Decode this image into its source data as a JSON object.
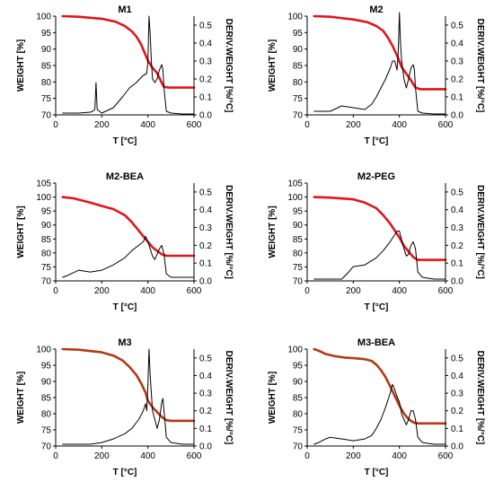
{
  "chart_data": [
    {
      "type": "line",
      "title": "M1",
      "xlabel": "T [°C]",
      "ylabel": "WEIGHT [%]",
      "y2label": "DERIV.WEIGHT [%/°C]",
      "xlim": [
        0,
        600
      ],
      "xticks": [
        0,
        200,
        400,
        600
      ],
      "ylim": [
        70,
        100
      ],
      "yticks": [
        70,
        75,
        80,
        85,
        90,
        95,
        100
      ],
      "y2lim": [
        0,
        0.55
      ],
      "y2ticks": [
        "0.0",
        "0.1",
        "0.2",
        "0.3",
        "0.4",
        "0.5"
      ],
      "series": [
        {
          "color": "#e0161b",
          "axis": "left",
          "x": [
            30,
            100,
            200,
            260,
            300,
            330,
            350,
            370,
            385,
            400,
            420,
            440,
            460,
            470,
            490,
            550,
            600
          ],
          "y": [
            100,
            99.8,
            99.2,
            98.3,
            97,
            95.4,
            93.8,
            91.5,
            89,
            86.5,
            84.3,
            82.7,
            79.7,
            78.5,
            78.3,
            78.3,
            78.3
          ]
        },
        {
          "color": "#000000",
          "axis": "right",
          "x": [
            30,
            100,
            150,
            160,
            170,
            175,
            180,
            200,
            250,
            290,
            320,
            350,
            380,
            395,
            400,
            405,
            410,
            415,
            420,
            430,
            440,
            450,
            460,
            465,
            470,
            480,
            500,
            550,
            600
          ],
          "y": [
            0.01,
            0.01,
            0.015,
            0.02,
            0.03,
            0.18,
            0.03,
            0.01,
            0.04,
            0.1,
            0.15,
            0.18,
            0.22,
            0.23,
            0.3,
            0.55,
            0.45,
            0.3,
            0.2,
            0.18,
            0.2,
            0.25,
            0.28,
            0.25,
            0.15,
            0.02,
            0.01,
            0.005,
            0.005
          ]
        }
      ]
    },
    {
      "type": "line",
      "title": "M2",
      "xlabel": "T [°C]",
      "ylabel": "WEIGHT [%]",
      "y2label": "DERIV.WEIGHT [%/°C]",
      "xlim": [
        0,
        600
      ],
      "xticks": [
        0,
        200,
        400,
        600
      ],
      "ylim": [
        70,
        100
      ],
      "yticks": [
        70,
        75,
        80,
        85,
        90,
        95,
        100
      ],
      "y2lim": [
        0,
        0.55
      ],
      "y2ticks": [
        "0.0",
        "0.1",
        "0.2",
        "0.3",
        "0.4",
        "0.5"
      ],
      "series": [
        {
          "color": "#e0161b",
          "axis": "left",
          "x": [
            30,
            100,
            200,
            260,
            300,
            330,
            350,
            370,
            390,
            410,
            430,
            450,
            470,
            490,
            550,
            600
          ],
          "y": [
            100,
            99.8,
            99,
            98.2,
            97,
            95.5,
            93.5,
            91,
            88,
            84.5,
            82.5,
            80.5,
            78.3,
            77.8,
            77.8,
            77.8
          ]
        },
        {
          "color": "#000000",
          "axis": "right",
          "x": [
            30,
            100,
            150,
            200,
            250,
            280,
            300,
            320,
            340,
            360,
            370,
            380,
            390,
            395,
            400,
            405,
            410,
            420,
            430,
            440,
            450,
            460,
            465,
            470,
            480,
            500,
            550,
            600
          ],
          "y": [
            0.02,
            0.02,
            0.05,
            0.04,
            0.03,
            0.06,
            0.1,
            0.15,
            0.2,
            0.26,
            0.3,
            0.3,
            0.25,
            0.35,
            0.57,
            0.4,
            0.3,
            0.2,
            0.15,
            0.2,
            0.26,
            0.28,
            0.25,
            0.15,
            0.02,
            0.01,
            0.005,
            0.005
          ]
        }
      ]
    },
    {
      "type": "line",
      "title": "M2-BEA",
      "xlabel": "T [°C]",
      "ylabel": "WEIGHT [%]",
      "y2label": "DERIV.WEIGHT [%/°C]",
      "xlim": [
        0,
        600
      ],
      "xticks": [
        0,
        200,
        400,
        600
      ],
      "ylim": [
        70,
        105
      ],
      "yticks": [
        70,
        75,
        80,
        85,
        90,
        95,
        100,
        105
      ],
      "y2lim": [
        0,
        0.55
      ],
      "y2ticks": [
        "0.0",
        "0.1",
        "0.2",
        "0.3",
        "0.4",
        "0.5"
      ],
      "series": [
        {
          "color": "#e0161b",
          "axis": "left",
          "x": [
            30,
            80,
            150,
            200,
            250,
            300,
            330,
            360,
            380,
            400,
            420,
            440,
            460,
            480,
            550,
            600
          ],
          "y": [
            100,
            99.5,
            98,
            96.8,
            95.7,
            93.5,
            91,
            88,
            86,
            84,
            82,
            80.8,
            79.5,
            79,
            79,
            79
          ]
        },
        {
          "color": "#000000",
          "axis": "right",
          "x": [
            30,
            50,
            100,
            150,
            200,
            250,
            300,
            330,
            360,
            380,
            390,
            400,
            410,
            420,
            430,
            440,
            450,
            460,
            470,
            480,
            500,
            550,
            600
          ],
          "y": [
            0.02,
            0.03,
            0.06,
            0.05,
            0.06,
            0.09,
            0.13,
            0.17,
            0.2,
            0.22,
            0.25,
            0.22,
            0.18,
            0.14,
            0.12,
            0.15,
            0.18,
            0.2,
            0.15,
            0.04,
            0.02,
            0.02,
            0.02
          ]
        }
      ]
    },
    {
      "type": "line",
      "title": "M2-PEG",
      "xlabel": "T [°C]",
      "ylabel": "WEIGHT [%]",
      "y2label": "DERIV.WEIGHT [%/°C]",
      "xlim": [
        0,
        600
      ],
      "xticks": [
        0,
        200,
        400,
        600
      ],
      "ylim": [
        70,
        105
      ],
      "yticks": [
        70,
        75,
        80,
        85,
        90,
        95,
        100,
        105
      ],
      "y2lim": [
        0,
        0.55
      ],
      "y2ticks": [
        "0.0",
        "0.1",
        "0.2",
        "0.3",
        "0.4",
        "0.5"
      ],
      "series": [
        {
          "color": "#e0161b",
          "axis": "left",
          "x": [
            30,
            100,
            200,
            250,
            300,
            330,
            360,
            380,
            400,
            420,
            440,
            460,
            480,
            550,
            600
          ],
          "y": [
            100,
            99.8,
            99.2,
            98,
            96,
            93.5,
            90.5,
            88,
            85.5,
            82.5,
            80.5,
            78.5,
            77.5,
            77.5,
            77.5
          ]
        },
        {
          "color": "#000000",
          "axis": "right",
          "x": [
            30,
            100,
            150,
            180,
            200,
            250,
            300,
            330,
            360,
            380,
            390,
            400,
            410,
            420,
            430,
            440,
            450,
            460,
            470,
            480,
            500,
            550,
            600
          ],
          "y": [
            0.01,
            0.01,
            0.01,
            0.05,
            0.08,
            0.09,
            0.13,
            0.17,
            0.22,
            0.26,
            0.28,
            0.28,
            0.23,
            0.18,
            0.14,
            0.15,
            0.2,
            0.22,
            0.18,
            0.05,
            0.02,
            0.01,
            0.01
          ]
        }
      ]
    },
    {
      "type": "line",
      "title": "M3",
      "xlabel": "T [°C]",
      "ylabel": "WEIGHT [%]",
      "y2label": "DERIV.WEIGHT [%/°C]",
      "xlim": [
        0,
        600
      ],
      "xticks": [
        0,
        200,
        400,
        600
      ],
      "ylim": [
        70,
        100
      ],
      "yticks": [
        70,
        75,
        80,
        85,
        90,
        95,
        100
      ],
      "y2lim": [
        0,
        0.55
      ],
      "y2ticks": [
        "0.0",
        "0.1",
        "0.2",
        "0.3",
        "0.4",
        "0.5"
      ],
      "series": [
        {
          "color": "#b23a14",
          "axis": "left",
          "x": [
            30,
            100,
            200,
            250,
            290,
            320,
            350,
            370,
            390,
            400,
            420,
            440,
            460,
            480,
            500,
            550,
            600
          ],
          "y": [
            100,
            99.8,
            99,
            98,
            96.5,
            94.5,
            92,
            89.5,
            86.5,
            84,
            82,
            80.5,
            79,
            78,
            77.8,
            77.8,
            77.8
          ]
        },
        {
          "color": "#000000",
          "axis": "right",
          "x": [
            30,
            100,
            150,
            200,
            250,
            300,
            330,
            360,
            380,
            390,
            395,
            400,
            405,
            410,
            420,
            430,
            440,
            450,
            460,
            465,
            470,
            480,
            500,
            550,
            600
          ],
          "y": [
            0.01,
            0.01,
            0.01,
            0.02,
            0.04,
            0.07,
            0.1,
            0.15,
            0.2,
            0.24,
            0.2,
            0.35,
            0.55,
            0.4,
            0.2,
            0.15,
            0.1,
            0.15,
            0.25,
            0.27,
            0.2,
            0.05,
            0.02,
            0.01,
            0.01
          ]
        }
      ]
    },
    {
      "type": "line",
      "title": "M3-BEA",
      "xlabel": "T [°C]",
      "ylabel": "WEIGHT [%]",
      "y2label": "DERIV.WEIGHT [%/°C]",
      "xlim": [
        0,
        600
      ],
      "xticks": [
        0,
        200,
        400,
        600
      ],
      "ylim": [
        70,
        100
      ],
      "yticks": [
        70,
        75,
        80,
        85,
        90,
        95,
        100
      ],
      "y2lim": [
        0,
        0.55
      ],
      "y2ticks": [
        "0.0",
        "0.1",
        "0.2",
        "0.3",
        "0.4",
        "0.5"
      ],
      "series": [
        {
          "color": "#b23a14",
          "axis": "left",
          "x": [
            30,
            50,
            80,
            120,
            160,
            200,
            250,
            280,
            300,
            320,
            340,
            360,
            380,
            400,
            420,
            440,
            460,
            480,
            550,
            600
          ],
          "y": [
            100,
            99.5,
            98.5,
            97.8,
            97.4,
            97.2,
            96.9,
            96.3,
            95.2,
            93.5,
            91.3,
            88.5,
            85.5,
            82.5,
            80,
            78.3,
            77.3,
            77,
            77,
            77
          ]
        },
        {
          "color": "#000000",
          "axis": "right",
          "x": [
            30,
            50,
            80,
            100,
            150,
            200,
            250,
            280,
            300,
            320,
            340,
            360,
            370,
            380,
            390,
            400,
            410,
            420,
            430,
            440,
            450,
            460,
            470,
            480,
            500,
            550,
            600
          ],
          "y": [
            0.01,
            0.02,
            0.04,
            0.05,
            0.04,
            0.03,
            0.04,
            0.06,
            0.1,
            0.15,
            0.22,
            0.3,
            0.35,
            0.32,
            0.28,
            0.25,
            0.18,
            0.15,
            0.12,
            0.15,
            0.2,
            0.2,
            0.15,
            0.05,
            0.02,
            0.01,
            0.01
          ]
        }
      ]
    }
  ]
}
